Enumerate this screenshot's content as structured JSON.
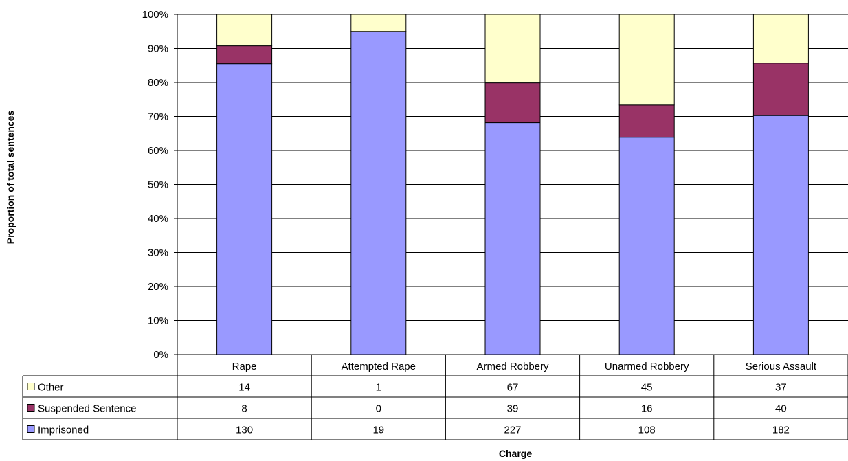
{
  "chart_data": {
    "type": "bar",
    "stacked": true,
    "normalized": true,
    "title": "",
    "xlabel": "Charge",
    "ylabel": "Proportion of total sentences",
    "ylim": [
      0,
      100
    ],
    "y_ticks": [
      "0%",
      "10%",
      "20%",
      "30%",
      "40%",
      "50%",
      "60%",
      "70%",
      "80%",
      "90%",
      "100%"
    ],
    "grid": true,
    "legend": "data-table-left",
    "categories": [
      "Rape",
      "Attempted Rape",
      "Armed Robbery",
      "Unarmed Robbery",
      "Serious Assault"
    ],
    "series": [
      {
        "name": "Imprisoned",
        "values": [
          130,
          19,
          227,
          108,
          182
        ],
        "color": "#9999ff"
      },
      {
        "name": "Suspended Sentence",
        "values": [
          8,
          0,
          39,
          16,
          40
        ],
        "color": "#993366"
      },
      {
        "name": "Other",
        "values": [
          14,
          1,
          67,
          45,
          37
        ],
        "color": "#ffffcc"
      }
    ],
    "table_row_order": [
      "Other",
      "Suspended Sentence",
      "Imprisoned"
    ]
  }
}
